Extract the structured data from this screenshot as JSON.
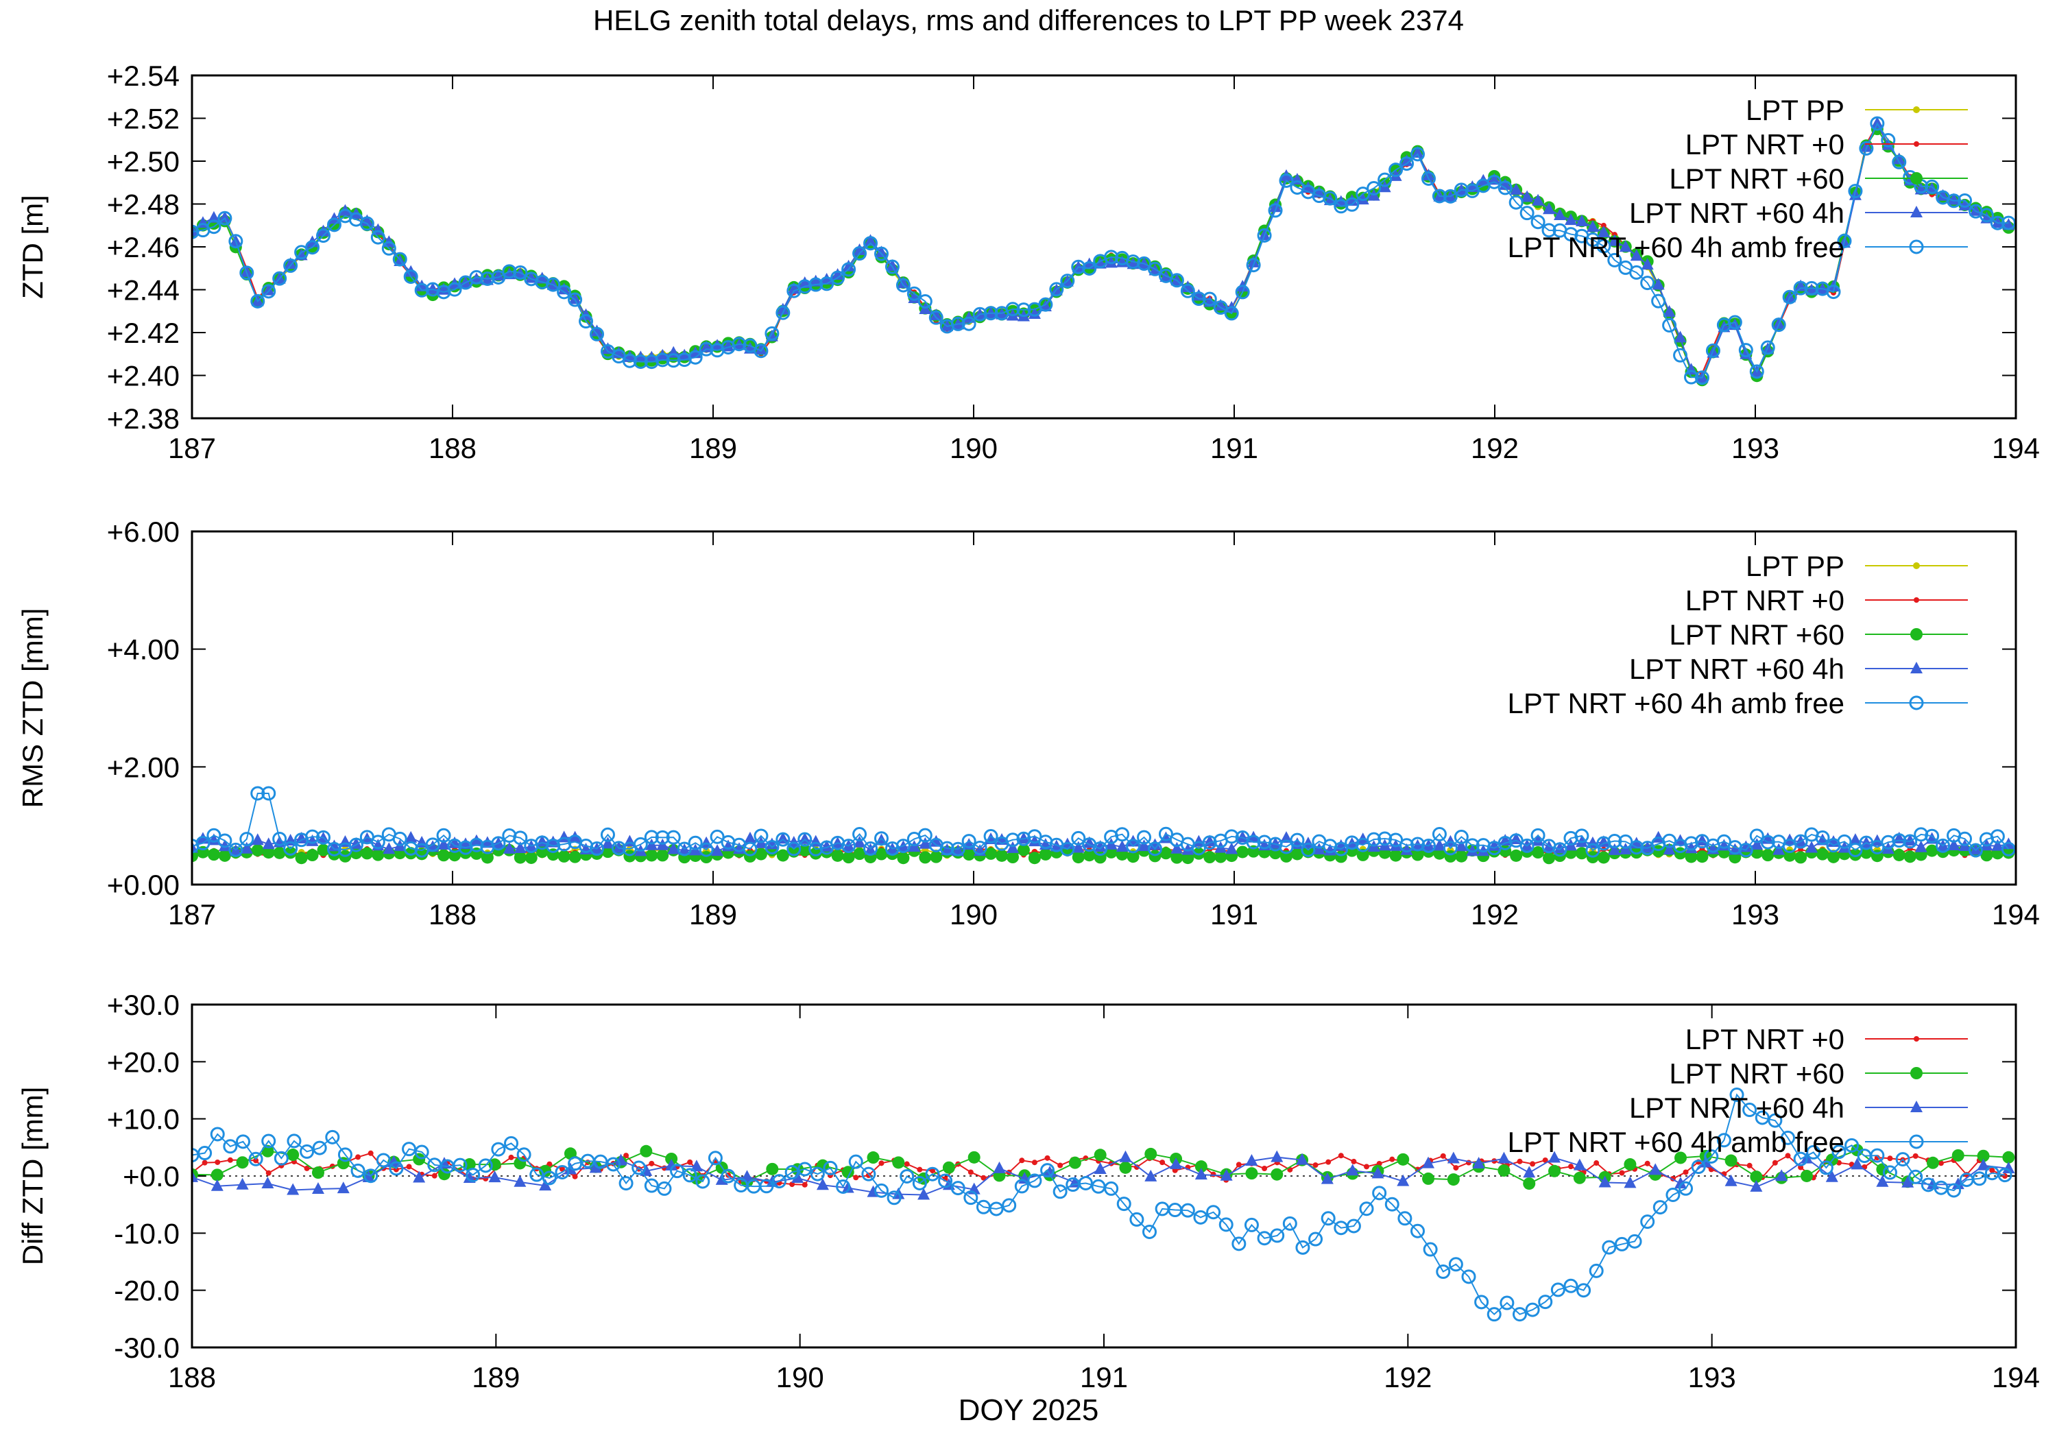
{
  "title": "HELG zenith total delays, rms and differences to LPT PP week 2374",
  "xlabel": "DOY 2025",
  "colors": {
    "pp": "#c8c800",
    "nrt0": "#e41a1c",
    "nrt60": "#1db91d",
    "nrt60_4h": "#3a5fd9",
    "amb_free": "#1f8ee0"
  },
  "chart_data": [
    {
      "type": "line",
      "ylabel": "ZTD [m]",
      "xlim": [
        187,
        194
      ],
      "ylim": [
        2.38,
        2.54
      ],
      "xticks": [
        "187",
        "188",
        "189",
        "190",
        "191",
        "192",
        "193",
        "194"
      ],
      "yticks": [
        "+2.38",
        "+2.40",
        "+2.42",
        "+2.44",
        "+2.46",
        "+2.48",
        "+2.50",
        "+2.52",
        "+2.54"
      ],
      "legend": "top-right",
      "base": {
        "x": [
          187.0,
          187.13,
          187.25,
          187.42,
          187.6,
          187.75,
          187.9,
          188.1,
          188.25,
          188.45,
          188.6,
          188.75,
          188.9,
          189.1,
          189.2,
          189.3,
          189.5,
          189.6,
          189.75,
          189.9,
          190.05,
          190.25,
          190.4,
          190.55,
          190.7,
          190.85,
          191.0,
          191.2,
          191.4,
          191.55,
          191.7,
          191.8,
          192.0,
          192.2,
          192.4,
          192.6,
          192.78,
          192.9,
          193.0,
          193.15,
          193.3,
          193.45,
          193.6,
          193.8,
          194.0
        ],
        "y": [
          2.468,
          2.474,
          2.436,
          2.456,
          2.478,
          2.462,
          2.438,
          2.445,
          2.448,
          2.44,
          2.41,
          2.408,
          2.41,
          2.416,
          2.41,
          2.44,
          2.446,
          2.464,
          2.44,
          2.422,
          2.428,
          2.43,
          2.45,
          2.455,
          2.45,
          2.438,
          2.43,
          2.492,
          2.48,
          2.486,
          2.505,
          2.48,
          2.492,
          2.478,
          2.47,
          2.45,
          2.395,
          2.43,
          2.4,
          2.44,
          2.44,
          2.52,
          2.49,
          2.48,
          2.468
        ]
      },
      "series": [
        {
          "name": "LPT PP",
          "style": "pp",
          "noise": 2.0,
          "seed": 11,
          "step": 0.042
        },
        {
          "name": "LPT NRT +0",
          "style": "nrt0",
          "noise": 2.5,
          "seed": 23,
          "step": 0.042
        },
        {
          "name": "LPT NRT +60",
          "style": "nrt60",
          "noise": 2.5,
          "seed": 37,
          "step": 0.042
        },
        {
          "name": "LPT NRT +60 4h",
          "style": "nrt60_4h",
          "noise": 2.5,
          "seed": 41,
          "step": 0.042
        },
        {
          "name": "LPT NRT +60 4h amb free",
          "style": "amb_free",
          "noise": 3.5,
          "seed": 53,
          "step": 0.042,
          "note": "drops ~10 mm below others over DOY 192.0-192.8"
        }
      ]
    },
    {
      "type": "line",
      "ylabel": "RMS ZTD [mm]",
      "xlim": [
        187,
        194
      ],
      "ylim": [
        0,
        6
      ],
      "xticks": [
        "187",
        "188",
        "189",
        "190",
        "191",
        "192",
        "193",
        "194"
      ],
      "yticks": [
        "+0.00",
        "+2.00",
        "+4.00",
        "+6.00"
      ],
      "legend": "top-right",
      "series": [
        {
          "name": "LPT PP",
          "style": "pp",
          "level": 0.55,
          "noise": 0.06,
          "seed": 61,
          "step": 0.042
        },
        {
          "name": "LPT NRT +0",
          "style": "nrt0",
          "level": 0.55,
          "noise": 0.06,
          "seed": 67,
          "step": 0.042
        },
        {
          "name": "LPT NRT +60",
          "style": "nrt60",
          "level": 0.52,
          "noise": 0.07,
          "seed": 71,
          "step": 0.042
        },
        {
          "name": "LPT NRT +60 4h",
          "style": "nrt60_4h",
          "level": 0.68,
          "noise": 0.12,
          "seed": 73,
          "step": 0.042
        },
        {
          "name": "LPT NRT +60 4h amb free",
          "style": "amb_free",
          "level": 0.72,
          "noise": 0.14,
          "seed": 79,
          "step": 0.042,
          "spike": [
            187.28,
            1.55
          ]
        }
      ]
    },
    {
      "type": "line",
      "ylabel": "Diff ZTD [mm]",
      "xlim": [
        188,
        194
      ],
      "ylim": [
        -30,
        30
      ],
      "xticks": [
        "188",
        "189",
        "190",
        "191",
        "192",
        "193",
        "194"
      ],
      "yticks": [
        "-30.0",
        "-20.0",
        "-10.0",
        "+0.0",
        "+10.0",
        "+20.0",
        "+30.0"
      ],
      "legend": "top-right",
      "zero_line": true,
      "series": [
        {
          "name": "LPT NRT +0",
          "style": "nrt0",
          "noise": 3.2,
          "seed": 83,
          "step": 0.042,
          "offset": 1.5
        },
        {
          "name": "LPT NRT +60",
          "style": "nrt60",
          "noise": 4.5,
          "seed": 89,
          "step": 0.083,
          "offset": 1.5
        },
        {
          "name": "LPT NRT +60 4h",
          "style": "nrt60_4h",
          "noise": 4.5,
          "seed": 97,
          "step": 0.083,
          "offset": 1.0
        },
        {
          "name": "LPT NRT +60 4h amb free",
          "style": "amb_free",
          "noise": 5.0,
          "seed": 101,
          "step": 0.042,
          "trend_x": [
            188.0,
            188.5,
            189.0,
            189.5,
            190.0,
            190.5,
            190.8,
            191.0,
            191.3,
            191.6,
            191.9,
            192.2,
            192.4,
            192.55,
            192.8,
            193.0,
            193.1,
            193.3,
            193.6,
            194.0
          ],
          "trend_y": [
            5,
            4,
            3,
            0,
            3,
            -3,
            -2,
            -6,
            -8,
            -12,
            -6,
            -18,
            -24,
            -20,
            -6,
            3,
            14,
            4,
            0,
            2
          ]
        }
      ]
    }
  ]
}
